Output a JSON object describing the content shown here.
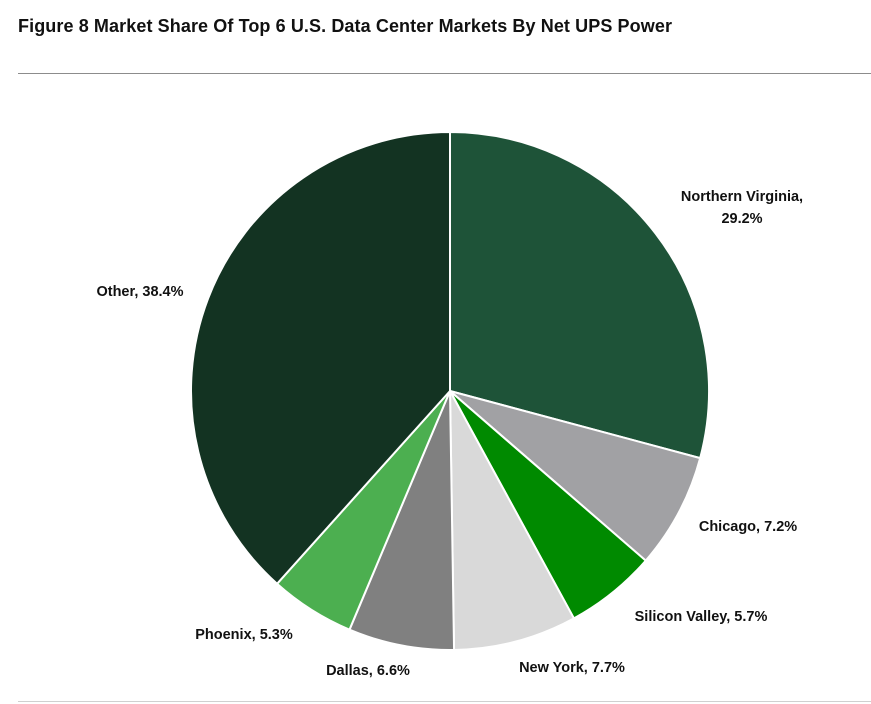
{
  "title": "Figure 8 Market Share Of Top 6 U.S. Data Center Markets By Net UPS Power",
  "chart_data": {
    "type": "pie",
    "title": "Figure 8 Market Share Of Top 6 U.S. Data Center Markets By Net UPS Power",
    "unit": "%",
    "slices": [
      {
        "label": "Northern Virginia",
        "value": 29.2,
        "color": "#1e5338",
        "text_lines": [
          "Northern Virginia,",
          "29.2%"
        ]
      },
      {
        "label": "Chicago",
        "value": 7.2,
        "color": "#a1a1a4",
        "text_lines": [
          "Chicago, 7.2%"
        ]
      },
      {
        "label": "Silicon Valley",
        "value": 5.7,
        "color": "#008a00",
        "text_lines": [
          "Silicon Valley, 5.7%"
        ]
      },
      {
        "label": "New York",
        "value": 7.7,
        "color": "#d9d9d9",
        "text_lines": [
          "New York, 7.7%"
        ]
      },
      {
        "label": "Dallas",
        "value": 6.6,
        "color": "#808080",
        "text_lines": [
          "Dallas, 6.6%"
        ]
      },
      {
        "label": "Phoenix",
        "value": 5.3,
        "color": "#4caf50",
        "text_lines": [
          "Phoenix, 5.3%"
        ]
      },
      {
        "label": "Other",
        "value": 38.4,
        "color": "#133322",
        "text_lines": [
          "Other, 38.4%"
        ]
      }
    ],
    "start_angle": "12 o'clock",
    "direction": "clockwise",
    "legend": "none (labels next to slices)"
  }
}
